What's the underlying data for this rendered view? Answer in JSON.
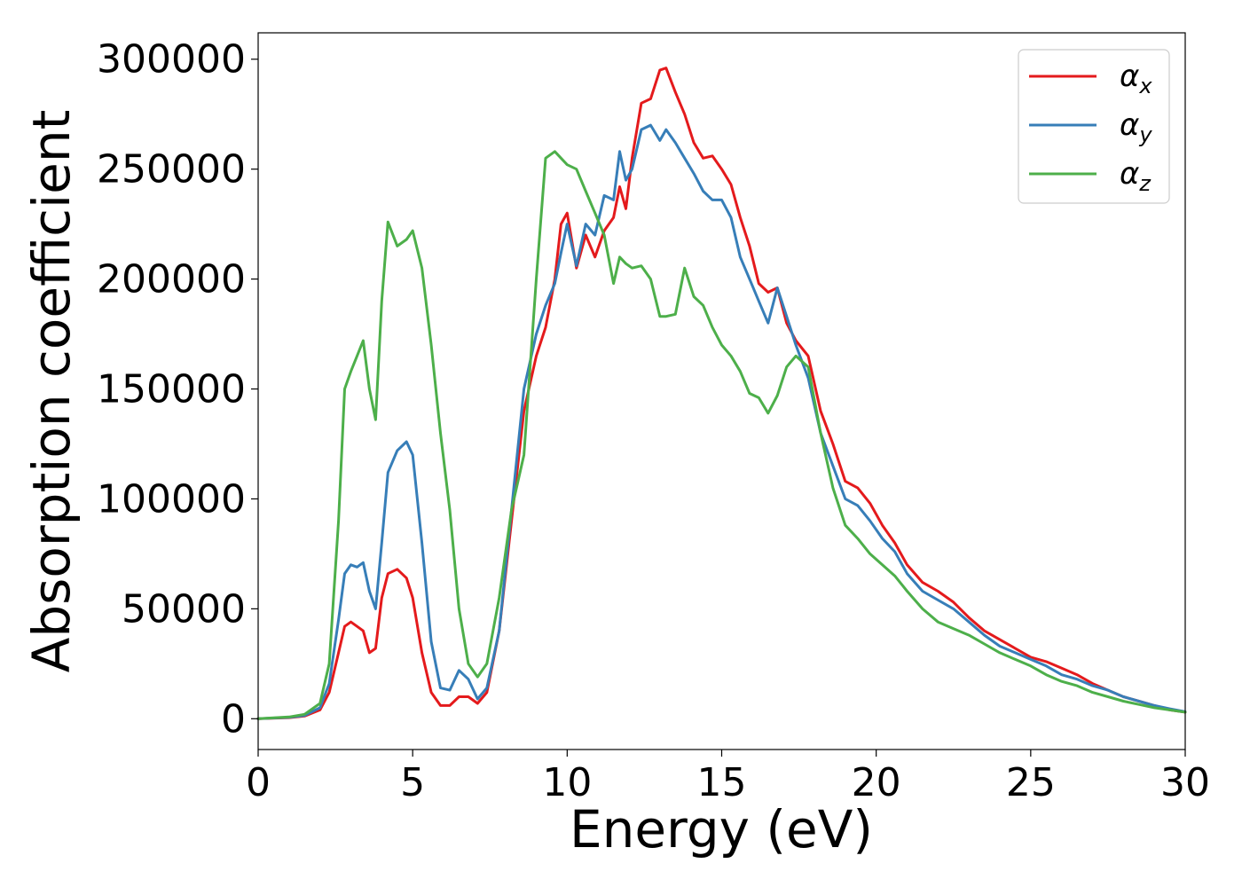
{
  "chart_data": {
    "type": "line",
    "title": "",
    "xlabel": "Energy (eV)",
    "ylabel": "Absorption coefficient",
    "xlim": [
      0,
      30
    ],
    "ylim": [
      -14000,
      312000
    ],
    "xticks": [
      0,
      5,
      10,
      15,
      20,
      25,
      30
    ],
    "yticks": [
      0,
      50000,
      100000,
      150000,
      200000,
      250000,
      300000
    ],
    "grid": false,
    "legend_position": "top-right",
    "series": [
      {
        "name": "α",
        "subscript": "x",
        "color": "#e41a1c",
        "x": [
          0,
          1,
          1.5,
          2,
          2.3,
          2.6,
          2.8,
          3.0,
          3.2,
          3.4,
          3.6,
          3.8,
          4.0,
          4.2,
          4.5,
          4.8,
          5.0,
          5.3,
          5.6,
          5.9,
          6.2,
          6.5,
          6.8,
          7.1,
          7.4,
          7.8,
          8.2,
          8.6,
          9.0,
          9.3,
          9.6,
          9.8,
          10.0,
          10.3,
          10.6,
          10.9,
          11.2,
          11.5,
          11.7,
          11.9,
          12.1,
          12.4,
          12.7,
          13.0,
          13.2,
          13.5,
          13.8,
          14.1,
          14.4,
          14.7,
          15.0,
          15.3,
          15.6,
          15.9,
          16.2,
          16.5,
          16.8,
          17.1,
          17.4,
          17.8,
          18.2,
          18.6,
          19.0,
          19.4,
          19.8,
          20.2,
          20.6,
          21.0,
          21.5,
          22.0,
          22.5,
          23.0,
          23.5,
          24.0,
          24.5,
          25.0,
          25.5,
          26.0,
          26.5,
          27.0,
          27.5,
          28.0,
          28.5,
          29.0,
          29.5,
          30.0
        ],
        "values": [
          0,
          500,
          1200,
          4000,
          12000,
          30000,
          42000,
          44000,
          42000,
          40000,
          30000,
          32000,
          55000,
          66000,
          68000,
          64000,
          55000,
          30000,
          12000,
          6000,
          6000,
          10000,
          10000,
          7000,
          12000,
          40000,
          90000,
          140000,
          165000,
          178000,
          200000,
          225000,
          230000,
          205000,
          220000,
          210000,
          222000,
          228000,
          242000,
          232000,
          255000,
          280000,
          282000,
          295000,
          296000,
          285000,
          275000,
          262000,
          255000,
          256000,
          250000,
          243000,
          228000,
          215000,
          198000,
          194000,
          196000,
          180000,
          172000,
          165000,
          140000,
          125000,
          108000,
          105000,
          98000,
          88000,
          80000,
          70000,
          62000,
          58000,
          53000,
          46000,
          40000,
          36000,
          32000,
          28000,
          26000,
          23000,
          20000,
          16000,
          13000,
          10000,
          8000,
          6000,
          4000,
          3000
        ]
      },
      {
        "name": "α",
        "subscript": "y",
        "color": "#377eb8",
        "x": [
          0,
          1,
          1.5,
          2,
          2.3,
          2.6,
          2.8,
          3.0,
          3.2,
          3.4,
          3.6,
          3.8,
          4.0,
          4.2,
          4.5,
          4.8,
          5.0,
          5.3,
          5.6,
          5.9,
          6.2,
          6.5,
          6.8,
          7.1,
          7.4,
          7.8,
          8.2,
          8.6,
          9.0,
          9.3,
          9.6,
          9.8,
          10.0,
          10.3,
          10.6,
          10.9,
          11.2,
          11.5,
          11.7,
          11.9,
          12.1,
          12.4,
          12.7,
          13.0,
          13.2,
          13.5,
          13.8,
          14.1,
          14.4,
          14.7,
          15.0,
          15.3,
          15.6,
          15.9,
          16.2,
          16.5,
          16.8,
          17.1,
          17.4,
          17.8,
          18.2,
          18.6,
          19.0,
          19.4,
          19.8,
          20.2,
          20.6,
          21.0,
          21.5,
          22.0,
          22.5,
          23.0,
          23.5,
          24.0,
          24.5,
          25.0,
          25.5,
          26.0,
          26.5,
          27.0,
          27.5,
          28.0,
          28.5,
          29.0,
          29.5,
          30.0
        ],
        "values": [
          0,
          600,
          1500,
          5000,
          16000,
          45000,
          66000,
          70000,
          69000,
          71000,
          58000,
          50000,
          80000,
          112000,
          122000,
          126000,
          120000,
          80000,
          35000,
          14000,
          13000,
          22000,
          18000,
          9000,
          14000,
          40000,
          95000,
          150000,
          175000,
          188000,
          198000,
          212000,
          225000,
          206000,
          225000,
          220000,
          238000,
          236000,
          258000,
          245000,
          250000,
          268000,
          270000,
          263000,
          268000,
          262000,
          255000,
          248000,
          240000,
          236000,
          236000,
          228000,
          210000,
          200000,
          190000,
          180000,
          196000,
          183000,
          170000,
          155000,
          130000,
          115000,
          100000,
          97000,
          90000,
          82000,
          76000,
          66000,
          58000,
          54000,
          50000,
          44000,
          38000,
          33000,
          30000,
          27000,
          24000,
          20000,
          18000,
          15000,
          13000,
          10000,
          8000,
          6000,
          4500,
          3200
        ]
      },
      {
        "name": "α",
        "subscript": "z",
        "color": "#4daf4a",
        "x": [
          0,
          1,
          1.5,
          2,
          2.3,
          2.6,
          2.8,
          3.0,
          3.2,
          3.4,
          3.6,
          3.8,
          4.0,
          4.2,
          4.5,
          4.8,
          5.0,
          5.3,
          5.6,
          5.9,
          6.2,
          6.5,
          6.8,
          7.1,
          7.4,
          7.8,
          8.2,
          8.6,
          9.0,
          9.3,
          9.6,
          9.8,
          10.0,
          10.3,
          10.6,
          10.9,
          11.2,
          11.5,
          11.7,
          11.9,
          12.1,
          12.4,
          12.7,
          13.0,
          13.2,
          13.5,
          13.8,
          14.1,
          14.4,
          14.7,
          15.0,
          15.3,
          15.6,
          15.9,
          16.2,
          16.5,
          16.8,
          17.1,
          17.4,
          17.8,
          18.2,
          18.6,
          19.0,
          19.4,
          19.8,
          20.2,
          20.6,
          21.0,
          21.5,
          22.0,
          22.5,
          23.0,
          23.5,
          24.0,
          24.5,
          25.0,
          25.5,
          26.0,
          26.5,
          27.0,
          27.5,
          28.0,
          28.5,
          29.0,
          29.5,
          30.0
        ],
        "values": [
          0,
          800,
          2000,
          7000,
          25000,
          90000,
          150000,
          158000,
          165000,
          172000,
          150000,
          136000,
          190000,
          226000,
          215000,
          218000,
          222000,
          205000,
          170000,
          130000,
          95000,
          50000,
          25000,
          19000,
          25000,
          55000,
          95000,
          120000,
          200000,
          255000,
          258000,
          255000,
          252000,
          250000,
          240000,
          230000,
          220000,
          198000,
          210000,
          207000,
          205000,
          206000,
          200000,
          183000,
          183000,
          184000,
          205000,
          192000,
          188000,
          178000,
          170000,
          165000,
          158000,
          148000,
          146000,
          139000,
          147000,
          160000,
          165000,
          160000,
          130000,
          105000,
          88000,
          82000,
          75000,
          70000,
          65000,
          58000,
          50000,
          44000,
          41000,
          38000,
          34000,
          30000,
          27000,
          24000,
          20000,
          17000,
          15000,
          12000,
          10000,
          8000,
          6500,
          5000,
          4000,
          3000
        ]
      }
    ]
  }
}
